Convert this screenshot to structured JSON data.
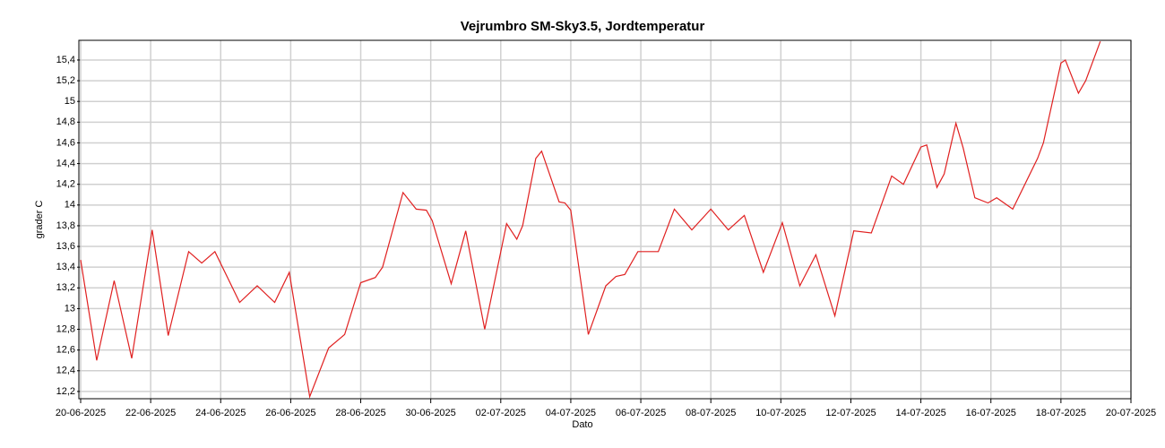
{
  "chart_data": {
    "type": "line",
    "title": "Vejrumbro SM-Sky3.5, Jordtemperatur",
    "x_label": "Dato",
    "y_label": "grader C",
    "grid": true,
    "x": [
      "20-06-2025 00:00",
      "20-06-2025 11:00",
      "20-06-2025 23:00",
      "21-06-2025 11:00",
      "22-06-2025 01:00",
      "22-06-2025 12:00",
      "23-06-2025 02:00",
      "23-06-2025 11:00",
      "23-06-2025 20:00",
      "24-06-2025 13:00",
      "25-06-2025 01:00",
      "25-06-2025 13:00",
      "25-06-2025 23:00",
      "26-06-2025 13:00",
      "27-06-2025 02:00",
      "27-06-2025 13:00",
      "28-06-2025 00:00",
      "28-06-2025 10:00",
      "28-06-2025 15:00",
      "29-06-2025 05:00",
      "29-06-2025 14:00",
      "29-06-2025 21:00",
      "30-06-2025 01:00",
      "30-06-2025 14:00",
      "01-07-2025 00:00",
      "01-07-2025 13:00",
      "02-07-2025 04:00",
      "02-07-2025 11:00",
      "02-07-2025 15:00",
      "03-07-2025 00:00",
      "03-07-2025 04:00",
      "03-07-2025 16:00",
      "03-07-2025 20:00",
      "04-07-2025 00:00",
      "04-07-2025 12:00",
      "05-07-2025 00:00",
      "05-07-2025 07:00",
      "05-07-2025 13:00",
      "05-07-2025 22:00",
      "06-07-2025 12:00",
      "06-07-2025 23:00",
      "07-07-2025 11:00",
      "08-07-2025 00:00",
      "08-07-2025 12:00",
      "08-07-2025 23:00",
      "09-07-2025 12:00",
      "10-07-2025 01:00",
      "10-07-2025 13:00",
      "11-07-2025 00:00",
      "11-07-2025 13:00",
      "12-07-2025 02:00",
      "12-07-2025 14:00",
      "13-07-2025 04:00",
      "13-07-2025 12:00",
      "14-07-2025 00:00",
      "14-07-2025 04:00",
      "14-07-2025 11:00",
      "14-07-2025 16:00",
      "15-07-2025 00:00",
      "15-07-2025 05:00",
      "15-07-2025 13:00",
      "15-07-2025 22:00",
      "16-07-2025 04:00",
      "16-07-2025 15:00",
      "17-07-2025 08:00",
      "17-07-2025 12:00",
      "18-07-2025 00:00",
      "18-07-2025 03:00",
      "18-07-2025 12:00",
      "18-07-2025 17:00",
      "19-07-2025 03:00"
    ],
    "series": [
      {
        "name": "Jordtemperatur",
        "color": "#e02020",
        "values": [
          13.47,
          12.5,
          13.27,
          12.52,
          13.76,
          12.74,
          13.55,
          13.44,
          13.55,
          13.06,
          13.22,
          13.06,
          13.35,
          12.15,
          12.62,
          12.75,
          13.25,
          13.3,
          13.4,
          14.12,
          13.96,
          13.95,
          13.85,
          13.24,
          13.75,
          12.8,
          13.82,
          13.67,
          13.8,
          14.45,
          14.52,
          14.03,
          14.02,
          13.95,
          12.75,
          13.22,
          13.31,
          13.33,
          13.55,
          13.55,
          13.96,
          13.76,
          13.96,
          13.76,
          13.9,
          13.35,
          13.83,
          13.22,
          13.52,
          12.93,
          13.75,
          13.73,
          14.28,
          14.2,
          14.56,
          14.58,
          14.17,
          14.3,
          14.79,
          14.55,
          14.07,
          14.02,
          14.07,
          13.96,
          14.45,
          14.6,
          15.37,
          15.4,
          15.08,
          15.2,
          15.58
        ]
      }
    ],
    "xlim": [
      "20-06-2025",
      "20-07-2025"
    ],
    "xticks": [
      "20-06-2025",
      "22-06-2025",
      "24-06-2025",
      "26-06-2025",
      "28-06-2025",
      "30-06-2025",
      "02-07-2025",
      "04-07-2025",
      "06-07-2025",
      "08-07-2025",
      "10-07-2025",
      "12-07-2025",
      "14-07-2025",
      "16-07-2025",
      "18-07-2025",
      "20-07-2025"
    ],
    "ylim": [
      12.13,
      15.59
    ],
    "yticks": [
      {
        "value": 12.2,
        "label": "12,2"
      },
      {
        "value": 12.4,
        "label": "12,4"
      },
      {
        "value": 12.6,
        "label": "12,6"
      },
      {
        "value": 12.8,
        "label": "12,8"
      },
      13,
      {
        "value": 13.2,
        "label": "13,2"
      },
      {
        "value": 13.4,
        "label": "13,4"
      },
      {
        "value": 13.6,
        "label": "13,6"
      },
      {
        "value": 13.8,
        "label": "13,8"
      },
      14,
      {
        "value": 14.2,
        "label": "14,2"
      },
      {
        "value": 14.4,
        "label": "14,4"
      },
      {
        "value": 14.6,
        "label": "14,6"
      },
      {
        "value": 14.8,
        "label": "14,8"
      },
      15,
      {
        "value": 15.2,
        "label": "15,2"
      },
      {
        "value": 15.4,
        "label": "15,4"
      }
    ]
  }
}
